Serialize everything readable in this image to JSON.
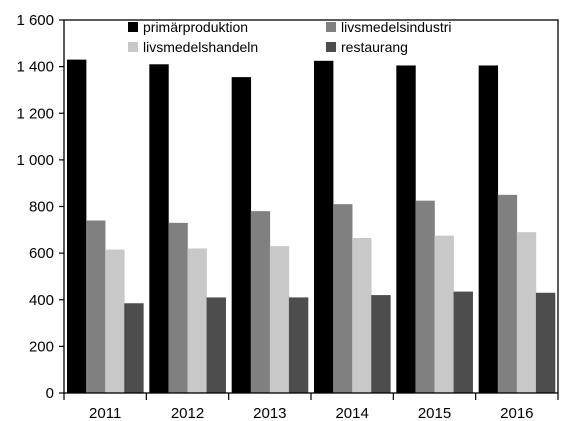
{
  "chart_data": {
    "type": "bar",
    "categories": [
      "2011",
      "2012",
      "2013",
      "2014",
      "2015",
      "2016"
    ],
    "series": [
      {
        "name": "primärproduktion",
        "color": "#000000",
        "values": [
          1430,
          1410,
          1355,
          1425,
          1405,
          1405
        ]
      },
      {
        "name": "livsmedelsindustri",
        "color": "#808080",
        "values": [
          740,
          730,
          780,
          810,
          825,
          850
        ]
      },
      {
        "name": "livsmedelshandeln",
        "color": "#c8c8c8",
        "values": [
          615,
          620,
          630,
          665,
          675,
          690
        ]
      },
      {
        "name": "restaurang",
        "color": "#4d4d4d",
        "values": [
          385,
          410,
          410,
          420,
          435,
          430
        ]
      }
    ],
    "yticks": [
      "0",
      "200",
      "400",
      "600",
      "800",
      "1 000",
      "1 200",
      "1 400",
      "1 600"
    ],
    "ylim": [
      0,
      1600
    ],
    "legend_position": "top",
    "grid": false
  }
}
